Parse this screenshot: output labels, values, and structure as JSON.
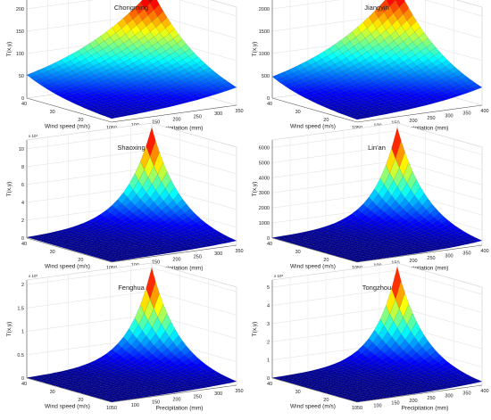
{
  "chart_data": [
    {
      "type": "surface3d",
      "title": "Chongming",
      "xlabel": "Wind speed (m/s)",
      "ylabel": "Precipitation (mm)",
      "zlabel": "T(x,y)",
      "z_multiplier": "",
      "x_range": [
        10,
        40
      ],
      "y_range": [
        50,
        350
      ],
      "x_ticks": [
        "10",
        "20",
        "30",
        "40"
      ],
      "y_ticks": [
        "50",
        "100",
        "150",
        "200",
        "250",
        "300",
        "350"
      ],
      "z_ticks": [
        "0",
        "50",
        "100",
        "150",
        "200"
      ],
      "z_range": [
        0,
        220
      ],
      "corner_values": {
        "x40_y50": 52,
        "x10_y50": 8,
        "x40_y350": 205,
        "x10_y350": 40
      }
    },
    {
      "type": "surface3d",
      "title": "Jiangyin",
      "xlabel": "Wind speed (m/s)",
      "ylabel": "Precipitation (mm)",
      "zlabel": "T(x,y)",
      "z_multiplier": "",
      "x_range": [
        10,
        40
      ],
      "y_range": [
        50,
        400
      ],
      "x_ticks": [
        "10",
        "20",
        "30",
        "40"
      ],
      "y_ticks": [
        "50",
        "100",
        "150",
        "200",
        "250",
        "300",
        "350",
        "400"
      ],
      "z_ticks": [
        "0",
        "500",
        "1000",
        "1500",
        "2000"
      ],
      "z_range": [
        0,
        2200
      ],
      "corner_values": {
        "x40_y50": 480,
        "x10_y50": 60,
        "x40_y400": 2150,
        "x10_y400": 400
      }
    },
    {
      "type": "surface3d",
      "title": "Shaoxing",
      "xlabel": "Wind speed (m/s)",
      "ylabel": "Precipitation (mm)",
      "zlabel": "T(x,y)",
      "z_multiplier": "x 10⁴",
      "x_range": [
        10,
        40
      ],
      "y_range": [
        50,
        350
      ],
      "x_ticks": [
        "10",
        "20",
        "30",
        "40"
      ],
      "y_ticks": [
        "50",
        "100",
        "150",
        "200",
        "250",
        "300",
        "350"
      ],
      "z_ticks": [
        "0",
        "2",
        "4",
        "6",
        "8",
        "10"
      ],
      "z_range": [
        0,
        11
      ],
      "corner_values": {
        "x40_y50": 0.1,
        "x10_y50": 0.05,
        "x40_y350": 10.5,
        "x10_y350": 0.5
      }
    },
    {
      "type": "surface3d",
      "title": "Lin'an",
      "xlabel": "Wind speed (m/s)",
      "ylabel": "Precipitation (mm)",
      "zlabel": "T(x,y)",
      "z_multiplier": "",
      "x_range": [
        10,
        40
      ],
      "y_range": [
        50,
        400
      ],
      "x_ticks": [
        "10",
        "20",
        "30",
        "40"
      ],
      "y_ticks": [
        "50",
        "100",
        "150",
        "200",
        "250",
        "300",
        "350",
        "400"
      ],
      "z_ticks": [
        "0",
        "1000",
        "2000",
        "3000",
        "4000",
        "5000",
        "6000"
      ],
      "z_range": [
        0,
        6500
      ],
      "corner_values": {
        "x40_y50": 30,
        "x10_y50": 10,
        "x40_y400": 6200,
        "x10_y400": 300
      }
    },
    {
      "type": "surface3d",
      "title": "Fenghua",
      "xlabel": "Wind speed (m/s)",
      "ylabel": "Precipitation (mm)",
      "zlabel": "T(x,y)",
      "z_multiplier": "x 10⁵",
      "x_range": [
        10,
        40
      ],
      "y_range": [
        50,
        350
      ],
      "x_ticks": [
        "10",
        "20",
        "30",
        "40"
      ],
      "y_ticks": [
        "50",
        "100",
        "150",
        "200",
        "250",
        "300",
        "350"
      ],
      "z_ticks": [
        "0",
        "0.5",
        "1",
        "1.5",
        "2"
      ],
      "z_range": [
        0,
        2.1
      ],
      "corner_values": {
        "x40_y50": 0.01,
        "x10_y50": 0.005,
        "x40_y350": 2.0,
        "x10_y350": 0.08
      }
    },
    {
      "type": "surface3d",
      "title": "Tongzhou",
      "xlabel": "Wind speed (m/s)",
      "ylabel": "Precipitation (mm)",
      "zlabel": "T(x,y)",
      "z_multiplier": "x 10⁵",
      "x_range": [
        10,
        40
      ],
      "y_range": [
        50,
        400
      ],
      "x_ticks": [
        "10",
        "20",
        "30",
        "40"
      ],
      "y_ticks": [
        "50",
        "100",
        "150",
        "200",
        "250",
        "300",
        "350",
        "400"
      ],
      "z_ticks": [
        "0",
        "1",
        "2",
        "3",
        "4",
        "5"
      ],
      "z_range": [
        0,
        5.4
      ],
      "corner_values": {
        "x40_y50": 0.02,
        "x10_y50": 0.01,
        "x40_y400": 5.2,
        "x10_y400": 0.2
      }
    }
  ],
  "colormap": [
    "#00008f",
    "#0000ff",
    "#0080ff",
    "#00ffff",
    "#80ff80",
    "#ffff00",
    "#ff8000",
    "#ff0000",
    "#800000"
  ]
}
